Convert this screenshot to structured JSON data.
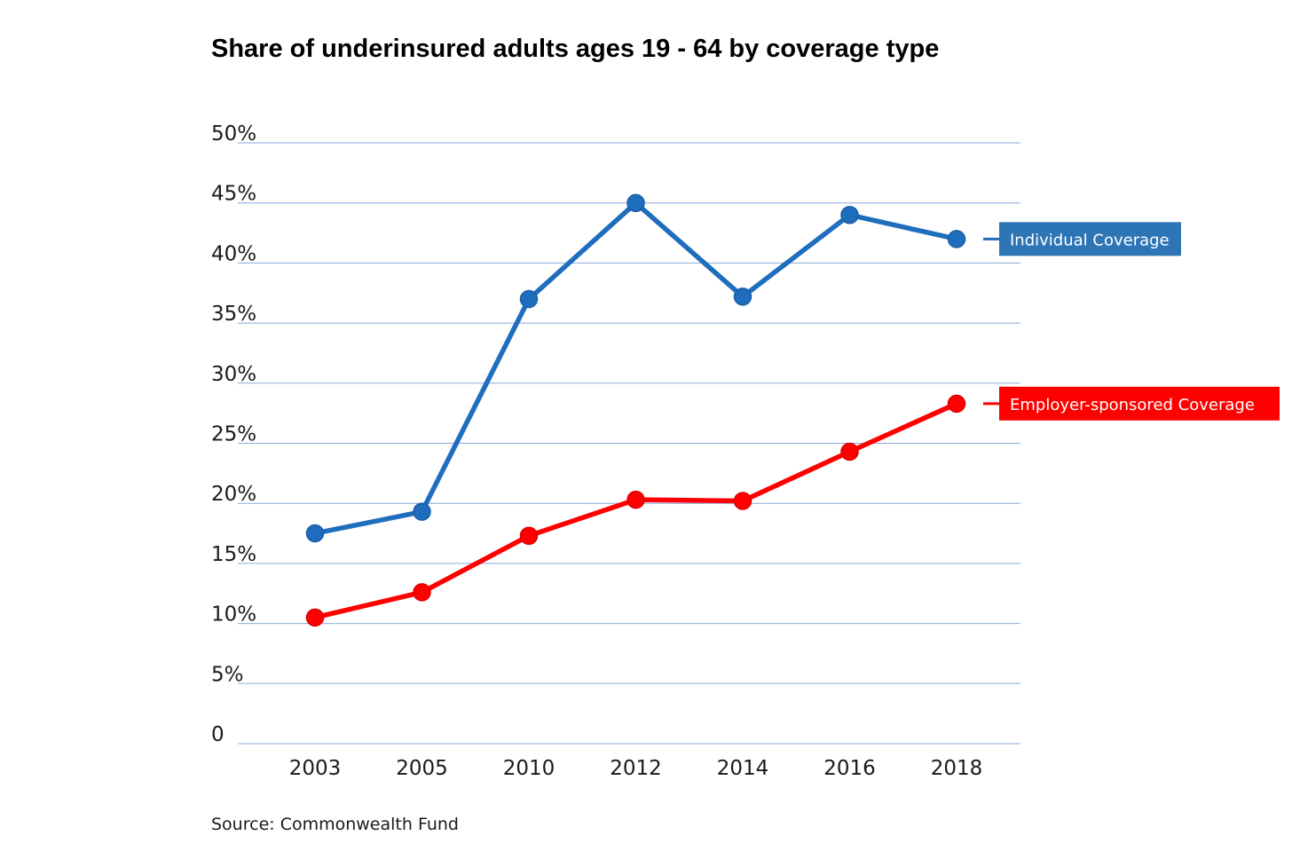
{
  "chart_data": {
    "type": "line",
    "title": "Share of underinsured adults ages 19 - 64 by coverage type",
    "xlabel": "",
    "ylabel": "",
    "categories": [
      "2003",
      "2005",
      "2010",
      "2012",
      "2014",
      "2016",
      "2018"
    ],
    "y_tick_labels": [
      "0",
      "5%",
      "10%",
      "15%",
      "20%",
      "25%",
      "30%",
      "35%",
      "40%",
      "45%",
      "50%"
    ],
    "ylim": [
      0,
      50
    ],
    "grid": true,
    "legend_placement": "right, labels at line ends",
    "series": [
      {
        "name": "Individual Coverage",
        "color": "#1f6dbd",
        "values": [
          17.5,
          19.3,
          37.0,
          45.0,
          37.2,
          44.0,
          42.0
        ]
      },
      {
        "name": "Employer-sponsored Coverage",
        "color": "#ff0000",
        "values": [
          10.5,
          12.6,
          17.3,
          20.3,
          20.2,
          24.3,
          28.3
        ]
      }
    ],
    "source": "Source: Commonwealth Fund"
  },
  "colors": {
    "gridline": "#8ea9db",
    "individual_label_bg": "#2e75b6",
    "employer_label_bg": "#ff0000"
  }
}
